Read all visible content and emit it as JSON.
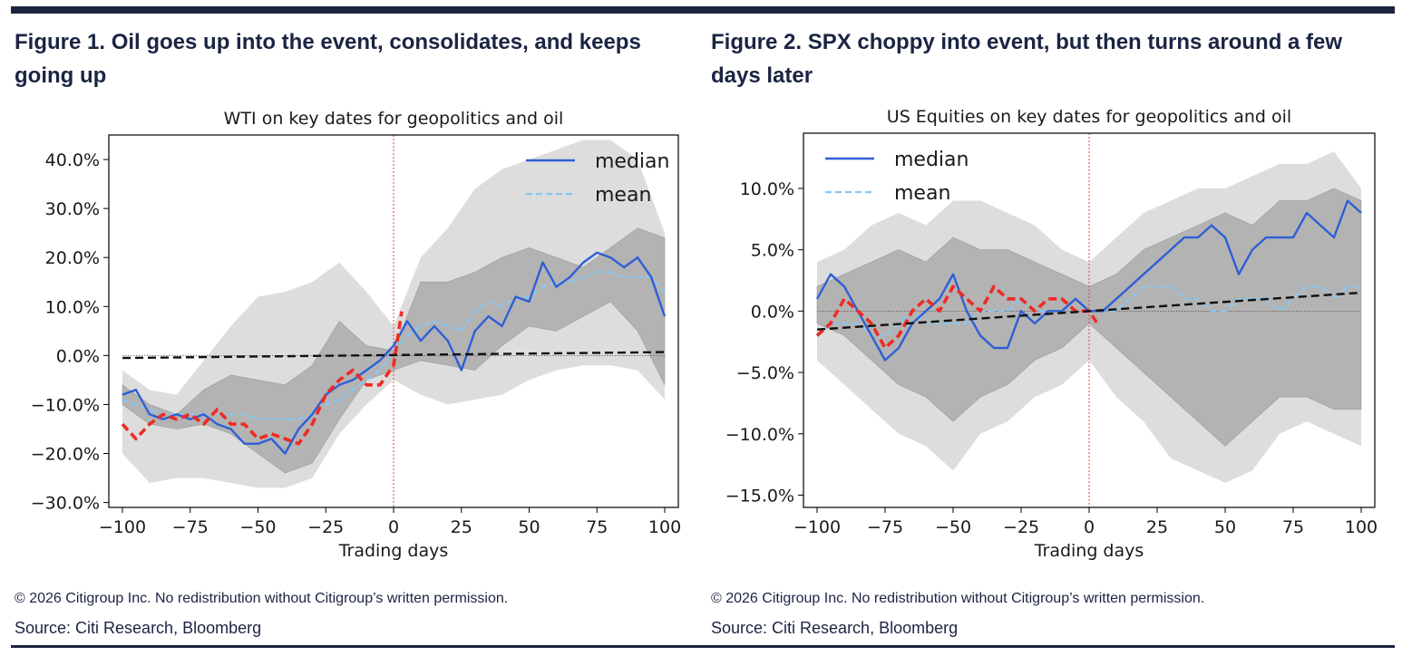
{
  "colors": {
    "rule": "#1d2440",
    "median": "#2f5fd6",
    "mean": "#87c7f2",
    "recent": "#ee2b24",
    "trend": "#111111",
    "band_outer": "#dddddd",
    "band_inner": "#b3b3b3",
    "event_line": "#e0453a"
  },
  "panels": [
    {
      "figure_title": "Figure 1. Oil goes up into the event, consolidates, and keeps going up",
      "copyright": "© 2026 Citigroup Inc. No redistribution without Citigroup’s written permission.",
      "source": "Source: Citi Research, Bloomberg"
    },
    {
      "figure_title": "Figure 2. SPX choppy into event, but then turns around a few days later",
      "copyright": "© 2026 Citigroup Inc. No redistribution without Citigroup’s written permission.",
      "source": "Source: Citi Research, Bloomberg"
    }
  ],
  "chart_data": [
    {
      "type": "line",
      "title": "WTI on key dates for geopolitics and oil",
      "xlabel": "Trading days",
      "ylabel": "",
      "xlim": [
        -105,
        105
      ],
      "ylim": [
        -31,
        45
      ],
      "xticks": [
        -100,
        -75,
        -50,
        -25,
        0,
        25,
        50,
        75,
        100
      ],
      "xtick_labels": [
        "−100",
        "−75",
        "−50",
        "−25",
        "0",
        "25",
        "50",
        "75",
        "100"
      ],
      "yticks": [
        40,
        30,
        20,
        10,
        0,
        -10,
        -20,
        -30
      ],
      "ytick_labels": [
        "40.0%",
        "30.0%",
        "20.0%",
        "10.0%",
        "0.0%",
        "−10.0%",
        "−20.0%",
        "−30.0%"
      ],
      "legend": {
        "position": "top-right",
        "entries": [
          "median",
          "mean"
        ]
      },
      "event_x": 0,
      "bands": [
        {
          "name": "outer-range",
          "x": [
            -100,
            -90,
            -80,
            -70,
            -60,
            -50,
            -40,
            -30,
            -20,
            -10,
            0,
            10,
            20,
            30,
            40,
            50,
            60,
            70,
            80,
            90,
            100
          ],
          "lower": [
            -20,
            -26,
            -25,
            -25,
            -26,
            -27,
            -27,
            -25,
            -16,
            -10,
            -5,
            -8,
            -10,
            -9,
            -8,
            -5,
            -3,
            -2,
            -2,
            -3,
            -9
          ],
          "upper": [
            -3,
            -7,
            -8,
            -1,
            6,
            12,
            13,
            15,
            19,
            13,
            6,
            20,
            26,
            34,
            38,
            40,
            42,
            44,
            44,
            40,
            25
          ]
        },
        {
          "name": "inner-range",
          "x": [
            -100,
            -90,
            -80,
            -70,
            -60,
            -50,
            -40,
            -30,
            -20,
            -10,
            0,
            10,
            20,
            30,
            40,
            50,
            60,
            70,
            80,
            90,
            100
          ],
          "lower": [
            -10,
            -14,
            -15,
            -14,
            -16,
            -20,
            -24,
            -22,
            -13,
            -5,
            -3,
            -1,
            -2,
            -3,
            2,
            6,
            5,
            8,
            11,
            5,
            -6
          ],
          "upper": [
            -6,
            -10,
            -12,
            -7,
            -4,
            -5,
            -6,
            -2,
            7,
            2,
            1,
            15,
            15,
            17,
            20,
            22,
            20,
            18,
            22,
            26,
            24
          ]
        }
      ],
      "series": [
        {
          "name": "median",
          "x": [
            -100,
            -95,
            -90,
            -85,
            -80,
            -75,
            -70,
            -65,
            -60,
            -55,
            -50,
            -45,
            -40,
            -35,
            -30,
            -25,
            -20,
            -15,
            -10,
            -5,
            0,
            5,
            10,
            15,
            20,
            25,
            30,
            35,
            40,
            45,
            50,
            55,
            60,
            65,
            70,
            75,
            80,
            85,
            90,
            95,
            100
          ],
          "y": [
            -8,
            -7,
            -12,
            -13,
            -12,
            -13,
            -12,
            -14,
            -15,
            -18,
            -18,
            -17,
            -20,
            -15,
            -12,
            -8,
            -6,
            -5,
            -3,
            -1,
            2,
            7,
            3,
            6,
            3,
            -3,
            5,
            8,
            6,
            12,
            11,
            19,
            14,
            16,
            19,
            21,
            20,
            18,
            20,
            16,
            8
          ]
        },
        {
          "name": "mean",
          "x": [
            -100,
            -95,
            -90,
            -85,
            -80,
            -75,
            -70,
            -65,
            -60,
            -55,
            -50,
            -45,
            -40,
            -35,
            -30,
            -25,
            -20,
            -15,
            -10,
            -5,
            0,
            5,
            10,
            15,
            20,
            25,
            30,
            35,
            40,
            45,
            50,
            55,
            60,
            65,
            70,
            75,
            80,
            85,
            90,
            95,
            100
          ],
          "y": [
            -9,
            -10,
            -11,
            -12,
            -12,
            -12,
            -12,
            -12,
            -12,
            -12,
            -13,
            -13,
            -13,
            -13,
            -12,
            -10,
            -9,
            -7,
            -5,
            -3,
            1,
            4,
            6,
            7,
            6,
            5,
            9,
            11,
            10,
            12,
            12,
            14,
            15,
            15,
            16,
            17,
            17,
            16,
            16,
            16,
            13
          ]
        },
        {
          "name": "recent",
          "x": [
            -100,
            -95,
            -90,
            -85,
            -80,
            -75,
            -70,
            -65,
            -60,
            -55,
            -50,
            -45,
            -40,
            -35,
            -30,
            -25,
            -20,
            -15,
            -10,
            -5,
            0,
            3
          ],
          "y": [
            -14,
            -17,
            -14,
            -12,
            -13,
            -12,
            -14,
            -11,
            -14,
            -14,
            -17,
            -16,
            -17,
            -18,
            -14,
            -8,
            -5,
            -3,
            -6,
            -6,
            -2,
            9
          ]
        },
        {
          "name": "trend",
          "x": [
            -100,
            100
          ],
          "y": [
            -0.5,
            0.7
          ]
        }
      ]
    },
    {
      "type": "line",
      "title": "US Equities on key dates for geopolitics and oil",
      "xlabel": "Trading days",
      "ylabel": "",
      "xlim": [
        -105,
        105
      ],
      "ylim": [
        -16,
        14.5
      ],
      "xticks": [
        -100,
        -75,
        -50,
        -25,
        0,
        25,
        50,
        75,
        100
      ],
      "xtick_labels": [
        "−100",
        "−75",
        "−50",
        "−25",
        "0",
        "25",
        "50",
        "75",
        "100"
      ],
      "yticks": [
        10,
        5,
        0,
        -5,
        -10,
        -15
      ],
      "ytick_labels": [
        "10.0%",
        "5.0%",
        "0.0%",
        "−5.0%",
        "−10.0%",
        "−15.0%"
      ],
      "legend": {
        "position": "top-left",
        "entries": [
          "median",
          "mean"
        ]
      },
      "event_x": 0,
      "bands": [
        {
          "name": "outer-range",
          "x": [
            -100,
            -90,
            -80,
            -70,
            -60,
            -50,
            -40,
            -30,
            -20,
            -10,
            0,
            10,
            20,
            30,
            40,
            50,
            60,
            70,
            80,
            90,
            100
          ],
          "lower": [
            -4,
            -6,
            -8,
            -10,
            -11,
            -13,
            -10,
            -9,
            -7,
            -6,
            -4,
            -7,
            -9,
            -12,
            -13,
            -14,
            -13,
            -10,
            -9,
            -10,
            -11
          ],
          "upper": [
            4,
            5,
            7,
            8,
            7,
            9,
            9,
            8,
            7,
            5,
            4,
            6,
            8,
            9,
            10,
            10,
            11,
            12,
            12,
            13,
            10
          ]
        },
        {
          "name": "inner-range",
          "x": [
            -100,
            -90,
            -80,
            -70,
            -60,
            -50,
            -40,
            -30,
            -20,
            -10,
            0,
            10,
            20,
            30,
            40,
            50,
            60,
            70,
            80,
            90,
            100
          ],
          "lower": [
            -1,
            -2,
            -4,
            -6,
            -7,
            -9,
            -7,
            -6,
            -4,
            -3,
            -1,
            -3,
            -5,
            -7,
            -9,
            -11,
            -9,
            -7,
            -7,
            -8,
            -8
          ],
          "upper": [
            2,
            3,
            4,
            5,
            4,
            6,
            5,
            5,
            4,
            3,
            2,
            3,
            5,
            6,
            7,
            8,
            7,
            9,
            9,
            10,
            9
          ]
        }
      ],
      "series": [
        {
          "name": "median",
          "x": [
            -100,
            -95,
            -90,
            -85,
            -80,
            -75,
            -70,
            -65,
            -60,
            -55,
            -50,
            -45,
            -40,
            -35,
            -30,
            -25,
            -20,
            -15,
            -10,
            -5,
            0,
            5,
            10,
            15,
            20,
            25,
            30,
            35,
            40,
            45,
            50,
            55,
            60,
            65,
            70,
            75,
            80,
            85,
            90,
            95,
            100
          ],
          "y": [
            1,
            3,
            2,
            0,
            -2,
            -4,
            -3,
            -1,
            0,
            1,
            3,
            0,
            -2,
            -3,
            -3,
            0,
            -1,
            0,
            0,
            1,
            0,
            0,
            1,
            2,
            3,
            4,
            5,
            6,
            6,
            7,
            6,
            3,
            5,
            6,
            6,
            6,
            8,
            7,
            6,
            9,
            8
          ]
        },
        {
          "name": "mean",
          "x": [
            -100,
            -95,
            -90,
            -85,
            -80,
            -75,
            -70,
            -65,
            -60,
            -55,
            -50,
            -45,
            -40,
            -35,
            -30,
            -25,
            -20,
            -15,
            -10,
            -5,
            0,
            5,
            10,
            15,
            20,
            25,
            30,
            35,
            40,
            45,
            50,
            55,
            60,
            65,
            70,
            75,
            80,
            85,
            90,
            95,
            100
          ],
          "y": [
            -2,
            -1,
            -1,
            -1,
            -2,
            -2,
            -1,
            0,
            -1,
            -1,
            -1,
            -1,
            0,
            0,
            0,
            1,
            0,
            0,
            0,
            1,
            0,
            0,
            0,
            1,
            2,
            2,
            2,
            1,
            1,
            0,
            0,
            1,
            1,
            1,
            0,
            1,
            2,
            2,
            1,
            2,
            2
          ]
        },
        {
          "name": "recent",
          "x": [
            -100,
            -95,
            -90,
            -85,
            -80,
            -75,
            -70,
            -65,
            -60,
            -55,
            -50,
            -45,
            -40,
            -35,
            -30,
            -25,
            -20,
            -15,
            -10,
            -5,
            0,
            3
          ],
          "y": [
            -2,
            -1,
            1,
            0,
            -1,
            -3,
            -2,
            0,
            1,
            0,
            2,
            1,
            0,
            2,
            1,
            1,
            0,
            1,
            1,
            0,
            0,
            -1
          ]
        },
        {
          "name": "trend",
          "x": [
            -100,
            100
          ],
          "y": [
            -1.5,
            1.5
          ]
        }
      ]
    }
  ]
}
